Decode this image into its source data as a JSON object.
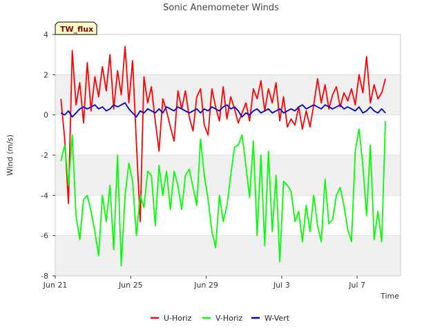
{
  "badge": {
    "label": "TW_flux"
  },
  "chart_data": {
    "type": "line",
    "title": "Sonic Anemometer Winds",
    "xlabel": "Time",
    "ylabel": "Wind (m/s)",
    "ylim": [
      -8,
      4
    ],
    "xlim_days": [
      0,
      18.3
    ],
    "grid": true,
    "legend_position": "bottom-center",
    "y_ticks": [
      -8,
      -6,
      -4,
      -2,
      0,
      2,
      4
    ],
    "x_ticks": [
      {
        "day": 0,
        "label": "Jun 21"
      },
      {
        "day": 4,
        "label": "Jun 25"
      },
      {
        "day": 8,
        "label": "Jun 29"
      },
      {
        "day": 12,
        "label": "Jul 3"
      },
      {
        "day": 16,
        "label": "Jul 7"
      }
    ],
    "x": [
      0.3,
      0.5,
      0.7,
      0.9,
      1.1,
      1.3,
      1.5,
      1.7,
      1.9,
      2.1,
      2.3,
      2.5,
      2.7,
      2.9,
      3.1,
      3.3,
      3.5,
      3.7,
      3.9,
      4.1,
      4.3,
      4.5,
      4.7,
      4.9,
      5.1,
      5.3,
      5.5,
      5.7,
      5.9,
      6.1,
      6.3,
      6.5,
      6.7,
      6.9,
      7.1,
      7.3,
      7.5,
      7.7,
      7.9,
      8.1,
      8.3,
      8.5,
      8.7,
      8.9,
      9.1,
      9.3,
      9.5,
      9.7,
      9.9,
      10.1,
      10.3,
      10.5,
      10.7,
      10.9,
      11.1,
      11.3,
      11.5,
      11.7,
      11.9,
      12.1,
      12.3,
      12.5,
      12.7,
      12.9,
      13.1,
      13.3,
      13.5,
      13.7,
      13.9,
      14.1,
      14.3,
      14.5,
      14.7,
      14.9,
      15.1,
      15.3,
      15.5,
      15.7,
      15.9,
      16.1,
      16.3,
      16.5,
      16.7,
      16.9,
      17.1,
      17.3,
      17.5
    ],
    "series": [
      {
        "name": "U-Horiz",
        "color": "#ff0000",
        "values": [
          0.8,
          -1.2,
          -4.4,
          3.2,
          0.5,
          1.6,
          -0.4,
          2.6,
          0.2,
          1.9,
          0.9,
          2.4,
          1.2,
          3.0,
          0.3,
          2.2,
          1.0,
          3.4,
          0.6,
          2.7,
          -1.4,
          -5.3,
          1.9,
          0.6,
          1.4,
          -0.3,
          -1.8,
          0.8,
          0.2,
          -0.6,
          -1.3,
          1.2,
          0.3,
          1.2,
          -0.1,
          -0.8,
          0.9,
          1.3,
          -0.5,
          -1.0,
          1.3,
          0.4,
          -0.3,
          1.4,
          -0.2,
          0.9,
          0.3,
          -0.4,
          0.1,
          0.6,
          -0.3,
          1.3,
          0.8,
          1.7,
          0.2,
          1.3,
          0.6,
          1.6,
          -0.3,
          0.9,
          -0.6,
          -0.2,
          -0.5,
          0.4,
          -0.7,
          0.2,
          -0.6,
          0.5,
          1.8,
          0.6,
          1.5,
          0.3,
          1.0,
          1.4,
          0.4,
          1.1,
          0.7,
          1.3,
          0.5,
          2.0,
          1.1,
          2.9,
          0.6,
          1.5,
          0.8,
          1.1,
          1.8
        ]
      },
      {
        "name": "V-Horiz",
        "color": "#00ff00",
        "values": [
          -2.3,
          -1.5,
          -3.5,
          -1.0,
          -5.0,
          -6.2,
          -4.2,
          -4.0,
          -4.8,
          -5.8,
          -7.0,
          -4.0,
          -5.3,
          -3.5,
          -6.7,
          -2.0,
          -7.5,
          -4.0,
          -2.4,
          -3.3,
          -6.0,
          -4.0,
          -4.6,
          -2.8,
          -3.0,
          -5.5,
          -2.5,
          -4.0,
          -2.8,
          -4.7,
          -2.8,
          -3.5,
          -4.7,
          -3.0,
          -2.7,
          -3.6,
          -4.5,
          -1.2,
          -3.0,
          -4.2,
          -5.8,
          -6.6,
          -4.0,
          -5.3,
          -4.5,
          -3.0,
          -1.6,
          -1.5,
          -1.0,
          -2.5,
          -4.1,
          -1.3,
          -6.0,
          -2.0,
          -6.5,
          -1.8,
          -5.8,
          -3.0,
          -7.3,
          -3.3,
          -3.5,
          -3.8,
          -5.3,
          -4.8,
          -6.3,
          -4.5,
          -5.8,
          -4.0,
          -5.5,
          -6.3,
          -3.2,
          -5.4,
          -5.2,
          -4.0,
          -3.6,
          -4.5,
          -5.7,
          -6.3,
          -1.8,
          -0.7,
          -2.5,
          -5.0,
          -1.5,
          -6.2,
          -4.8,
          -6.3,
          -0.3
        ]
      },
      {
        "name": "W-Vert",
        "color": "#0000cc",
        "values": [
          0.1,
          0.0,
          0.2,
          -0.1,
          0.1,
          0.3,
          0.4,
          0.3,
          0.4,
          0.5,
          0.3,
          0.4,
          0.2,
          0.3,
          0.5,
          0.4,
          0.5,
          0.6,
          0.3,
          0.1,
          -0.1,
          0.2,
          0.1,
          0.3,
          0.2,
          0.1,
          0.3,
          0.1,
          0.4,
          0.3,
          0.2,
          0.4,
          0.3,
          0.2,
          0.1,
          0.2,
          0.3,
          0.1,
          0.3,
          0.2,
          0.4,
          0.3,
          0.2,
          0.4,
          0.5,
          0.3,
          0.4,
          0.2,
          -0.1,
          0.1,
          0.0,
          0.2,
          0.3,
          0.1,
          0.2,
          0.3,
          0.1,
          0.2,
          0.3,
          0.1,
          0.2,
          0.3,
          0.2,
          0.4,
          0.5,
          0.3,
          0.4,
          0.5,
          0.4,
          0.3,
          0.5,
          0.4,
          0.3,
          0.4,
          0.5,
          0.3,
          0.4,
          0.3,
          0.2,
          0.4,
          0.1,
          0.2,
          0.4,
          0.2,
          0.1,
          0.3,
          0.1
        ]
      }
    ]
  }
}
